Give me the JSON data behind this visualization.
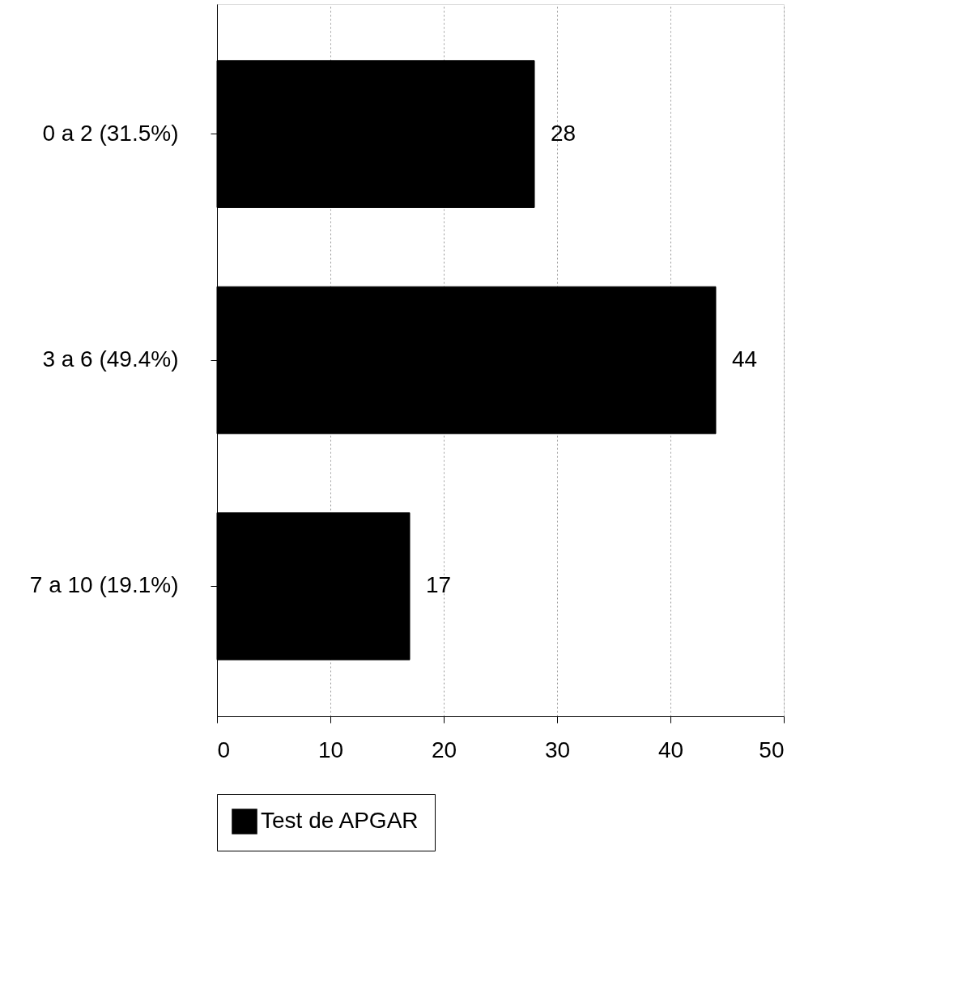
{
  "chart_data": {
    "type": "bar",
    "orientation": "horizontal",
    "categories": [
      "0 a 2     (31.5%)",
      "3 a 6     (49.4%)",
      "7 a 10     (19.1%)"
    ],
    "series": [
      {
        "name": "Test de APGAR",
        "color": "#000000",
        "values": [
          28,
          44,
          17
        ]
      }
    ],
    "xlim": [
      0,
      50
    ],
    "xticks": [
      0,
      10,
      20,
      30,
      40,
      50
    ],
    "grid": "x",
    "legend": "bottom",
    "data_labels": true
  }
}
